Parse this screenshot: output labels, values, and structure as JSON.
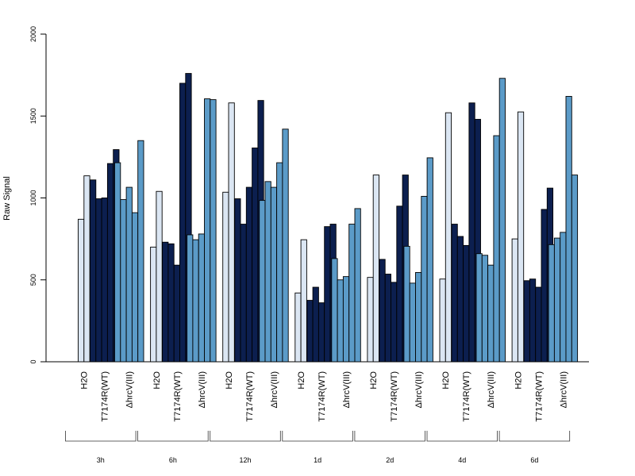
{
  "chart_data": {
    "type": "bar",
    "ylabel": "Raw Signal",
    "ylim": [
      0,
      2000
    ],
    "yticks": [
      0,
      500,
      1000,
      1500,
      2000
    ],
    "grid": false,
    "legend": "none",
    "group_tick_labels": [
      "H2O",
      "T7174R(WT)",
      "ΔhrcV(III)"
    ],
    "colors": {
      "H2O": "#dbe6f3",
      "T7174R(WT)": "#0c1f4f",
      "ΔhrcV(III)": "#5b9bc8"
    },
    "timepoints": [
      {
        "label": "3h",
        "H2O": [
          870,
          1135
        ],
        "T7174R(WT)": [
          1110,
          995,
          1000,
          1210,
          1295
        ],
        "ΔhrcV(III)": [
          1215,
          990,
          1065,
          910,
          1350
        ]
      },
      {
        "label": "6h",
        "H2O": [
          700,
          1040
        ],
        "T7174R(WT)": [
          730,
          720,
          590,
          1700,
          1760
        ],
        "ΔhrcV(III)": [
          775,
          745,
          780,
          1605,
          1600
        ]
      },
      {
        "label": "12h",
        "H2O": [
          1035,
          1580
        ],
        "T7174R(WT)": [
          995,
          840,
          1065,
          1305,
          1595
        ],
        "ΔhrcV(III)": [
          985,
          1100,
          1065,
          1215,
          1420
        ]
      },
      {
        "label": "1d",
        "H2O": [
          420,
          745
        ],
        "T7174R(WT)": [
          375,
          455,
          360,
          825,
          840
        ],
        "ΔhrcV(III)": [
          630,
          500,
          520,
          840,
          935
        ]
      },
      {
        "label": "2d",
        "H2O": [
          515,
          1140
        ],
        "T7174R(WT)": [
          625,
          535,
          485,
          950,
          1140
        ],
        "ΔhrcV(III)": [
          705,
          480,
          545,
          1010,
          1245
        ]
      },
      {
        "label": "4d",
        "H2O": [
          505,
          1520
        ],
        "T7174R(WT)": [
          840,
          765,
          710,
          1580,
          1480
        ],
        "ΔhrcV(III)": [
          660,
          650,
          590,
          1380,
          1730
        ]
      },
      {
        "label": "6d",
        "H2O": [
          750,
          1525
        ],
        "T7174R(WT)": [
          495,
          505,
          455,
          930,
          1060
        ],
        "ΔhrcV(III)": [
          715,
          755,
          790,
          1620,
          1140
        ]
      }
    ]
  }
}
